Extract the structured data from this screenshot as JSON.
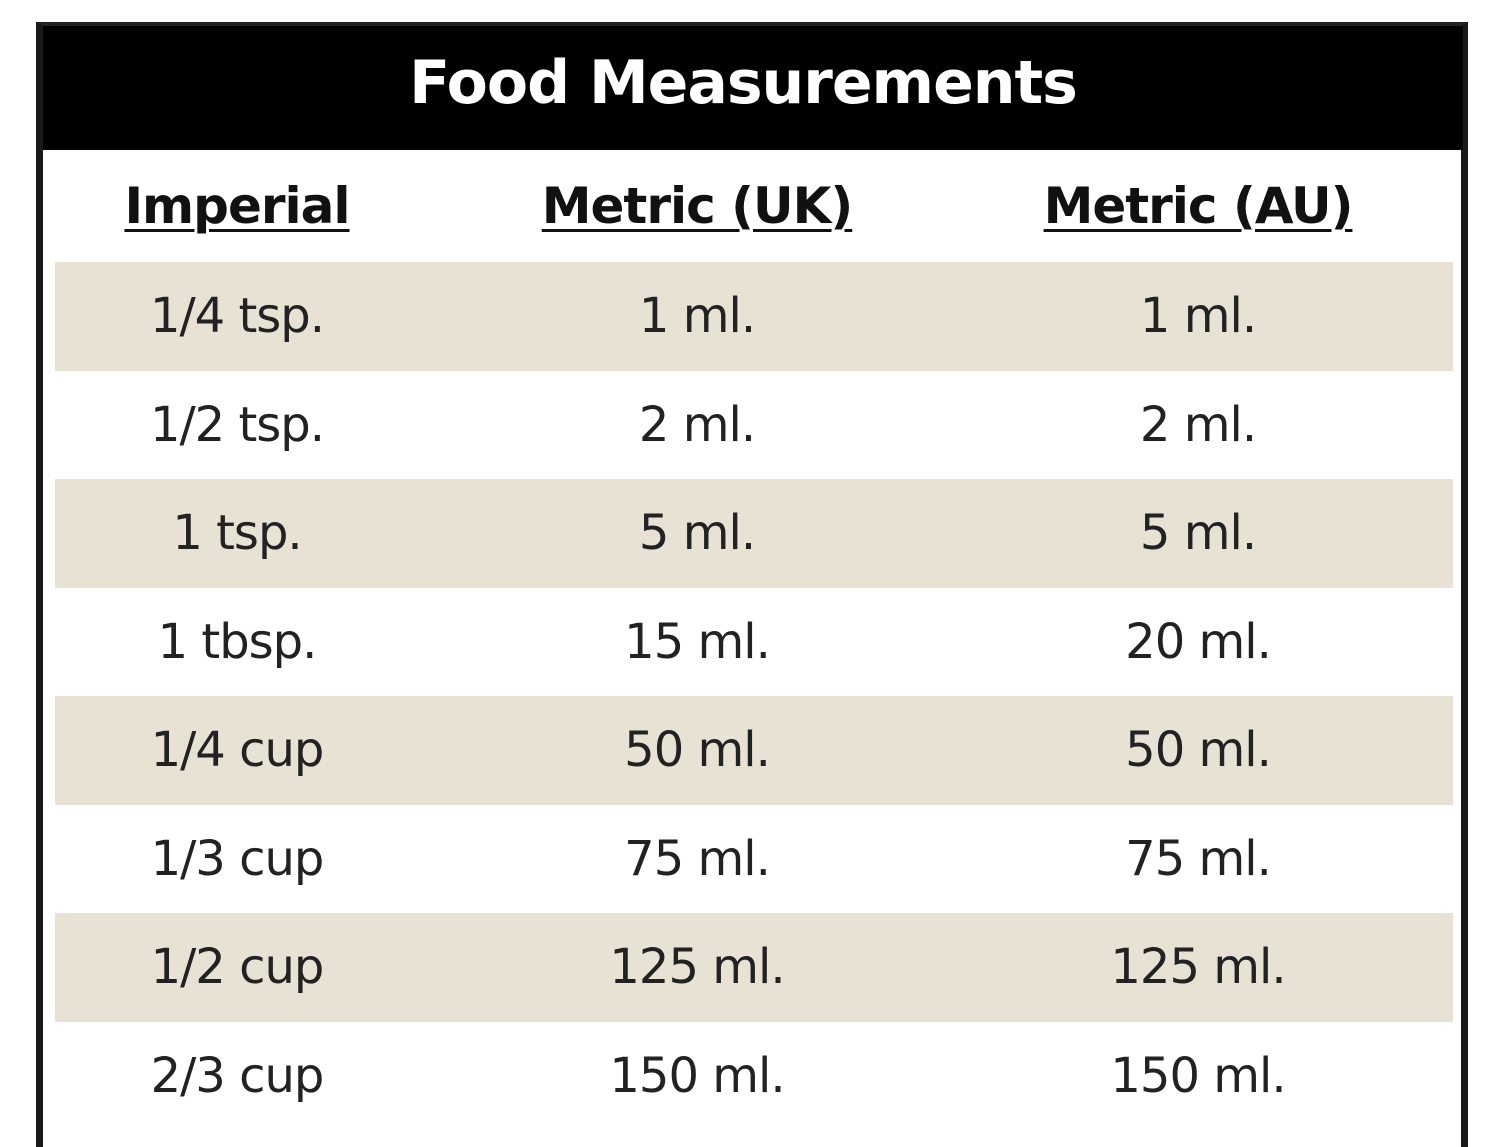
{
  "table": {
    "title": "Food Measurements",
    "columns": [
      "Imperial",
      "Metric (UK)",
      "Metric (AU)"
    ],
    "rows": [
      [
        "1/4 tsp.",
        "1 ml.",
        "1 ml."
      ],
      [
        "1/2 tsp.",
        "2 ml.",
        "2 ml."
      ],
      [
        "1 tsp.",
        "5 ml.",
        "5 ml."
      ],
      [
        "1 tbsp.",
        "15 ml.",
        "20 ml."
      ],
      [
        "1/4 cup",
        "50 ml.",
        "50 ml."
      ],
      [
        "1/3 cup",
        "75 ml.",
        "75 ml."
      ],
      [
        "1/2 cup",
        "125 ml.",
        "125 ml."
      ],
      [
        "2/3 cup",
        "150 ml.",
        "150 ml."
      ]
    ]
  },
  "colors": {
    "title_bg": "#000000",
    "title_text": "#ffffff",
    "row_shaded": "#e8e2d4",
    "row_plain": "#ffffff",
    "border": "#1a1a1a",
    "text": "#222222"
  }
}
